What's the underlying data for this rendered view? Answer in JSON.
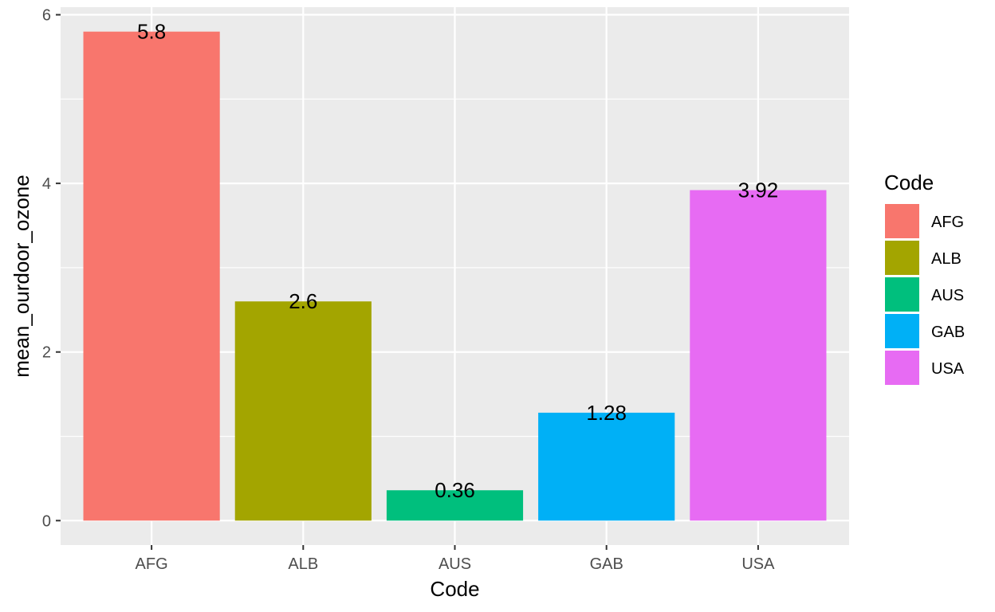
{
  "chart_data": {
    "type": "bar",
    "categories": [
      "AFG",
      "ALB",
      "AUS",
      "GAB",
      "USA"
    ],
    "values": [
      5.8,
      2.6,
      0.36,
      1.28,
      3.92
    ],
    "data_labels": [
      "5.8",
      "2.6",
      "0.36",
      "1.28",
      "3.92"
    ],
    "colors": [
      "#F8766D",
      "#A3A500",
      "#00BF7D",
      "#00B0F6",
      "#E76BF3"
    ],
    "xlabel": "Code",
    "ylabel": "mean_ourdoor_ozone",
    "ylim": [
      -0.29,
      6.09
    ],
    "y_ticks": [
      0,
      2,
      4,
      6
    ],
    "y_tick_labels": [
      "0",
      "2",
      "4",
      "6"
    ],
    "grid": true,
    "legend": {
      "title": "Code",
      "placement": "right",
      "entries": [
        "AFG",
        "ALB",
        "AUS",
        "GAB",
        "USA"
      ]
    }
  }
}
